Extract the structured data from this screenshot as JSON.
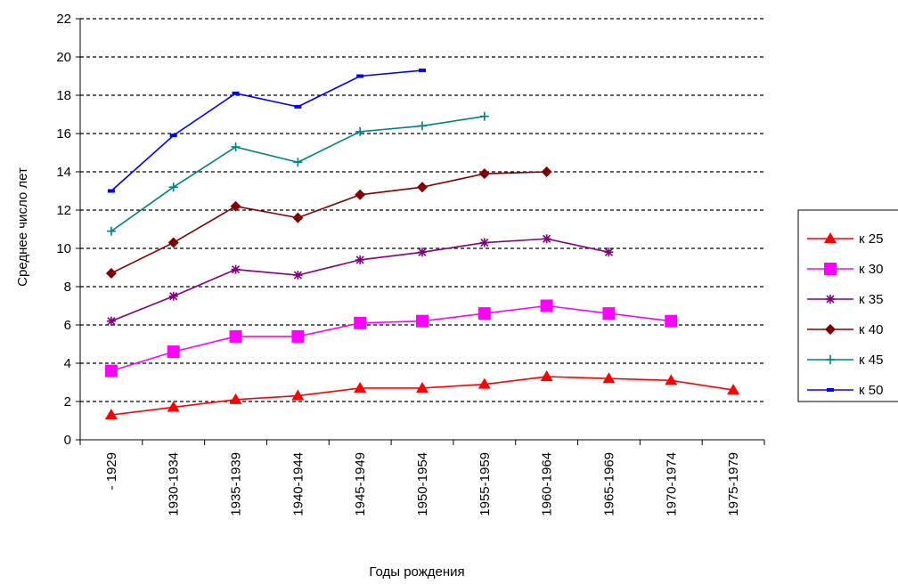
{
  "chart_data": {
    "type": "line",
    "title": "",
    "xlabel": "Годы рождения",
    "ylabel": "Среднее число лет",
    "ylim": [
      0,
      22
    ],
    "yticks": [
      0,
      2,
      4,
      6,
      8,
      10,
      12,
      14,
      16,
      18,
      20,
      22
    ],
    "grid": "horizontal dashed",
    "legend_position": "right",
    "categories": [
      "- 1929",
      "1930-1934",
      "1935-1939",
      "1940-1944",
      "1945-1949",
      "1950-1954",
      "1955-1959",
      "1960-1964",
      "1965-1969",
      "1970-1974",
      "1975-1979"
    ],
    "series": [
      {
        "name": "к 25",
        "color": "#ff0000",
        "marker": "triangle",
        "values": [
          1.3,
          1.7,
          2.1,
          2.3,
          2.7,
          2.7,
          2.9,
          3.3,
          3.2,
          3.1,
          2.6
        ]
      },
      {
        "name": "к 30",
        "color": "#ff00ff",
        "marker": "square",
        "values": [
          3.6,
          4.6,
          5.4,
          5.4,
          6.1,
          6.2,
          6.6,
          7.0,
          6.6,
          6.2,
          null
        ]
      },
      {
        "name": "к 35",
        "color": "#800080",
        "marker": "star",
        "values": [
          6.2,
          7.5,
          8.9,
          8.6,
          9.4,
          9.8,
          10.3,
          10.5,
          9.8,
          null,
          null
        ]
      },
      {
        "name": "к 40",
        "color": "#800000",
        "marker": "diamond",
        "values": [
          8.7,
          10.3,
          12.2,
          11.6,
          12.8,
          13.2,
          13.9,
          14.0,
          null,
          null,
          null
        ]
      },
      {
        "name": "к 45",
        "color": "#008080",
        "marker": "plus",
        "values": [
          10.9,
          13.2,
          15.3,
          14.5,
          16.1,
          16.4,
          16.9,
          null,
          null,
          null,
          null
        ]
      },
      {
        "name": "к 50",
        "color": "#0000ff",
        "marker": "dash",
        "values": [
          13.0,
          15.9,
          18.1,
          17.4,
          19.0,
          19.3,
          null,
          null,
          null,
          null,
          null
        ]
      }
    ]
  }
}
